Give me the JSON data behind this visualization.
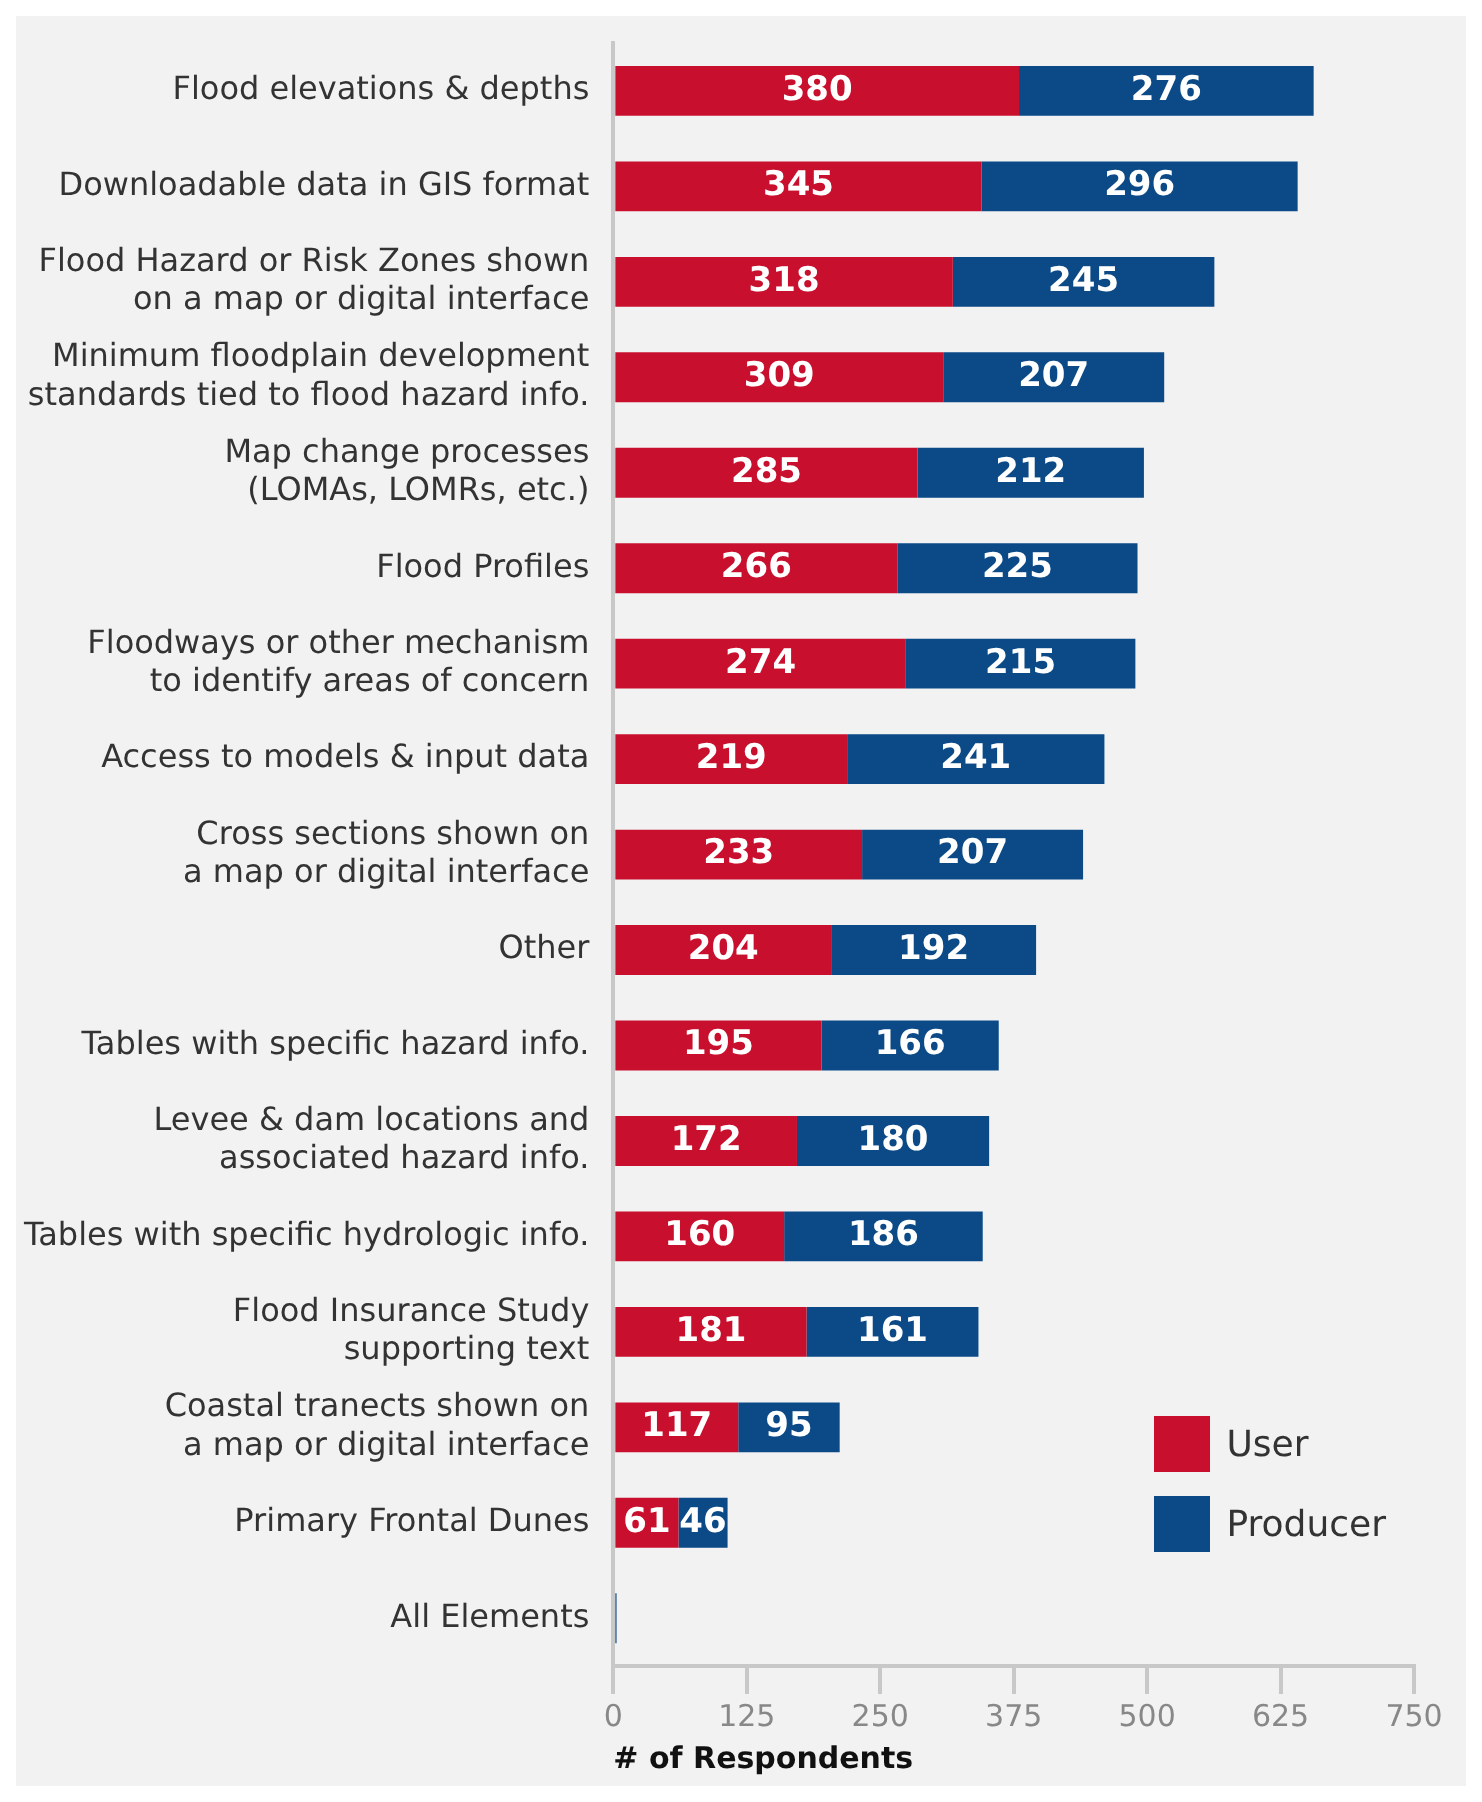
{
  "chart_data": {
    "type": "bar",
    "orientation": "horizontal",
    "stacked": true,
    "xlabel": "# of Respondents",
    "categories": [
      "Flood elevations & depths",
      "Downloadable data in GIS format",
      "Flood Hazard or Risk Zones shown\non a map or digital interface",
      "Minimum floodplain development\nstandards tied to flood hazard info.",
      "Map change processes\n(LOMAs, LOMRs, etc.)",
      "Flood Profiles",
      "Floodways or other mechanism\nto identify areas of concern",
      "Access to models & input data",
      "Cross sections shown on\na map or digital interface",
      "Other",
      "Tables with specific hazard info.",
      "Levee & dam locations and\nassociated hazard info.",
      "Tables with specific hydrologic info.",
      "Flood Insurance Study\nsupporting text",
      "Coastal tranects shown on\na map or digital interface",
      "Primary Frontal Dunes",
      "All Elements"
    ],
    "series": [
      {
        "name": "User",
        "color": "#c8102e",
        "values": [
          380,
          345,
          318,
          309,
          285,
          266,
          274,
          219,
          233,
          204,
          195,
          172,
          160,
          181,
          117,
          61,
          0
        ],
        "value_labels": [
          "380",
          "345",
          "318",
          "309",
          "285",
          "266",
          "274",
          "219",
          "233",
          "204",
          "195",
          "172",
          "160",
          "181",
          "117",
          "61",
          null
        ]
      },
      {
        "name": "Producer",
        "color": "#0b4a87",
        "values": [
          276,
          296,
          245,
          207,
          212,
          225,
          215,
          241,
          207,
          192,
          166,
          180,
          186,
          161,
          95,
          46,
          3
        ],
        "value_labels": [
          "276",
          "296",
          "245",
          "207",
          "212",
          "225",
          "215",
          "241",
          "207",
          "192",
          "166",
          "180",
          "186",
          "161",
          "95",
          "46",
          null
        ]
      }
    ],
    "xlim": [
      0,
      750
    ],
    "xticks": [
      0,
      125,
      250,
      375,
      500,
      625,
      750
    ],
    "grid": false,
    "legend": "bottom right"
  }
}
